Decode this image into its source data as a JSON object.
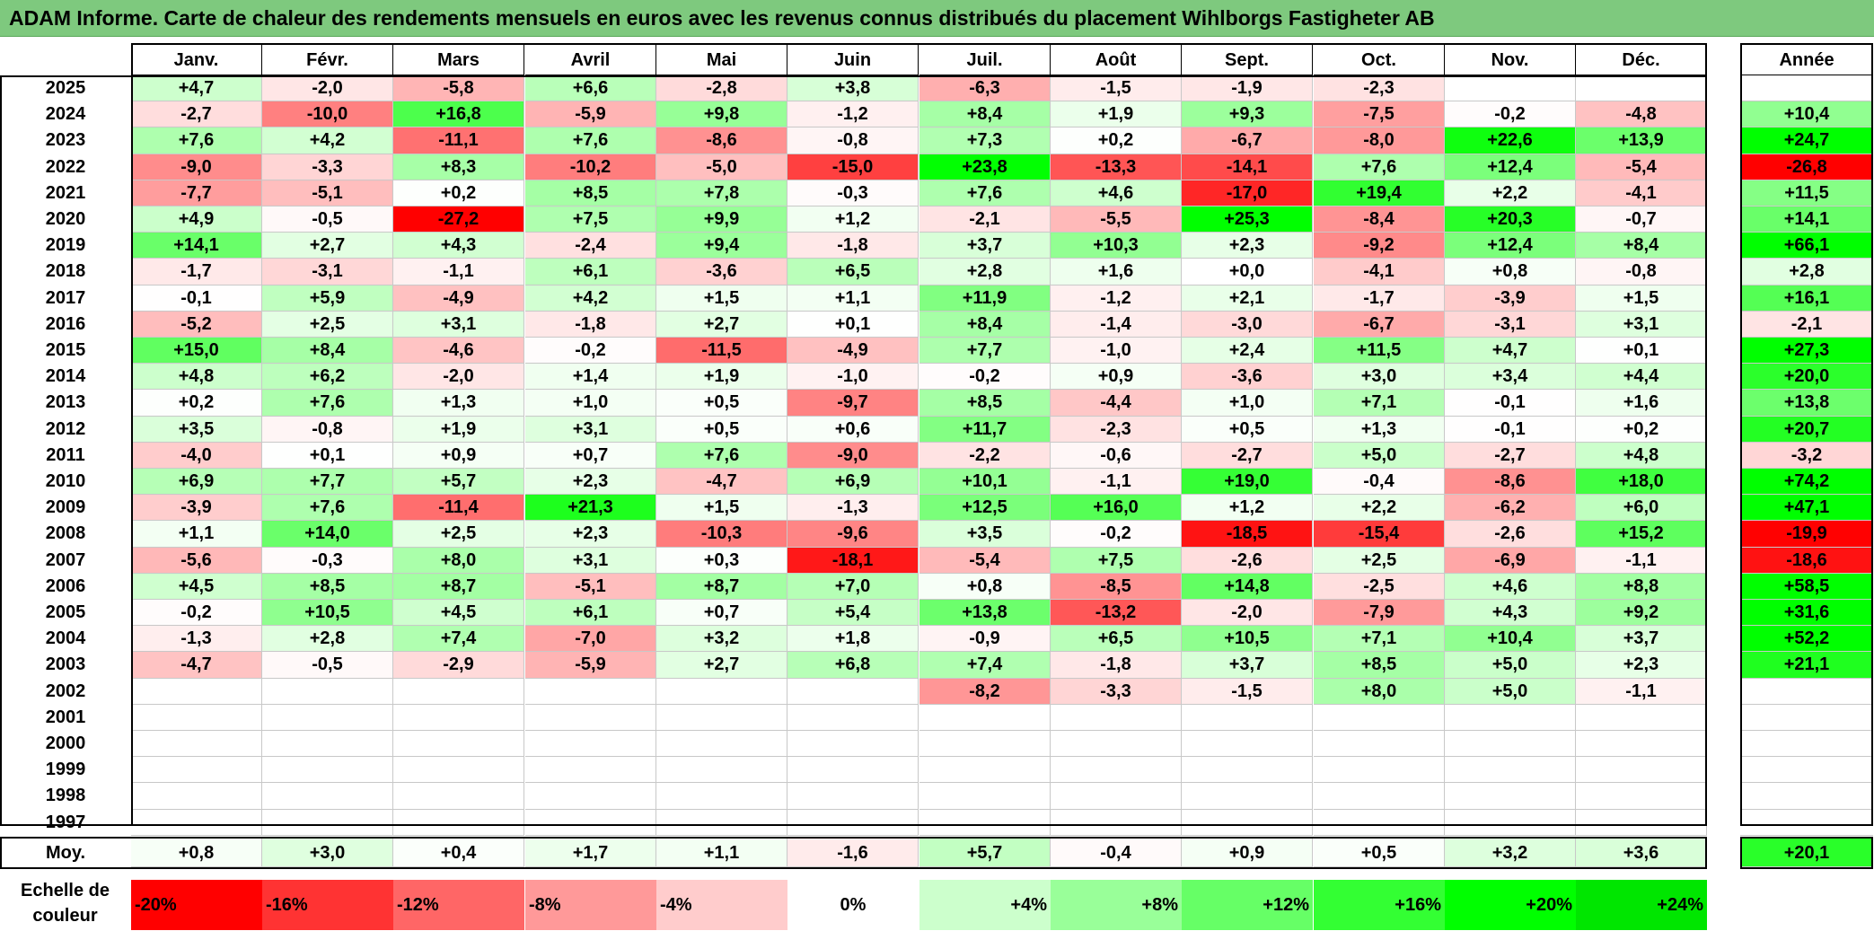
{
  "title": "ADAM Informe. Carte de chaleur des rendements mensuels en euros avec les revenus connus distribués du placement Wihlborgs Fastigheter AB",
  "chart_data": {
    "type": "heatmap",
    "title": "ADAM Informe. Carte de chaleur des rendements mensuels en euros avec les revenus connus distribués du placement Wihlborgs Fastigheter AB",
    "columns": [
      "Janv.",
      "Févr.",
      "Mars",
      "Avril",
      "Mai",
      "Juin",
      "Juil.",
      "Août",
      "Sept.",
      "Oct.",
      "Nov.",
      "Déc."
    ],
    "year_header": "Année",
    "rows": [
      {
        "year": "2025",
        "values": [
          "+4,7",
          "-2,0",
          "-5,8",
          "+6,6",
          "-2,8",
          "+3,8",
          "-6,3",
          "-1,5",
          "-1,9",
          "-2,3",
          "",
          ""
        ],
        "annual": ""
      },
      {
        "year": "2024",
        "values": [
          "-2,7",
          "-10,0",
          "+16,8",
          "-5,9",
          "+9,8",
          "-1,2",
          "+8,4",
          "+1,9",
          "+9,3",
          "-7,5",
          "-0,2",
          "-4,8"
        ],
        "annual": "+10,4"
      },
      {
        "year": "2023",
        "values": [
          "+7,6",
          "+4,2",
          "-11,1",
          "+7,6",
          "-8,6",
          "-0,8",
          "+7,3",
          "+0,2",
          "-6,7",
          "-8,0",
          "+22,6",
          "+13,9"
        ],
        "annual": "+24,7"
      },
      {
        "year": "2022",
        "values": [
          "-9,0",
          "-3,3",
          "+8,3",
          "-10,2",
          "-5,0",
          "-15,0",
          "+23,8",
          "-13,3",
          "-14,1",
          "+7,6",
          "+12,4",
          "-5,4"
        ],
        "annual": "-26,8"
      },
      {
        "year": "2021",
        "values": [
          "-7,7",
          "-5,1",
          "+0,2",
          "+8,5",
          "+7,8",
          "-0,3",
          "+7,6",
          "+4,6",
          "-17,0",
          "+19,4",
          "+2,2",
          "-4,1"
        ],
        "annual": "+11,5"
      },
      {
        "year": "2020",
        "values": [
          "+4,9",
          "-0,5",
          "-27,2",
          "+7,5",
          "+9,9",
          "+1,2",
          "-2,1",
          "-5,5",
          "+25,3",
          "-8,4",
          "+20,3",
          "-0,7"
        ],
        "annual": "+14,1"
      },
      {
        "year": "2019",
        "values": [
          "+14,1",
          "+2,7",
          "+4,3",
          "-2,4",
          "+9,4",
          "-1,8",
          "+3,7",
          "+10,3",
          "+2,3",
          "-9,2",
          "+12,4",
          "+8,4"
        ],
        "annual": "+66,1"
      },
      {
        "year": "2018",
        "values": [
          "-1,7",
          "-3,1",
          "-1,1",
          "+6,1",
          "-3,6",
          "+6,5",
          "+2,8",
          "+1,6",
          "+0,0",
          "-4,1",
          "+0,8",
          "-0,8"
        ],
        "annual": "+2,8"
      },
      {
        "year": "2017",
        "values": [
          "-0,1",
          "+5,9",
          "-4,9",
          "+4,2",
          "+1,5",
          "+1,1",
          "+11,9",
          "-1,2",
          "+2,1",
          "-1,7",
          "-3,9",
          "+1,5"
        ],
        "annual": "+16,1"
      },
      {
        "year": "2016",
        "values": [
          "-5,2",
          "+2,5",
          "+3,1",
          "-1,8",
          "+2,7",
          "+0,1",
          "+8,4",
          "-1,4",
          "-3,0",
          "-6,7",
          "-3,1",
          "+3,1"
        ],
        "annual": "-2,1"
      },
      {
        "year": "2015",
        "values": [
          "+15,0",
          "+8,4",
          "-4,6",
          "-0,2",
          "-11,5",
          "-4,9",
          "+7,7",
          "-1,0",
          "+2,4",
          "+11,5",
          "+4,7",
          "+0,1"
        ],
        "annual": "+27,3"
      },
      {
        "year": "2014",
        "values": [
          "+4,8",
          "+6,2",
          "-2,0",
          "+1,4",
          "+1,9",
          "-1,0",
          "-0,2",
          "+0,9",
          "-3,6",
          "+3,0",
          "+3,4",
          "+4,4"
        ],
        "annual": "+20,0"
      },
      {
        "year": "2013",
        "values": [
          "+0,2",
          "+7,6",
          "+1,3",
          "+1,0",
          "+0,5",
          "-9,7",
          "+8,5",
          "-4,4",
          "+1,0",
          "+7,1",
          "-0,1",
          "+1,6"
        ],
        "annual": "+13,8"
      },
      {
        "year": "2012",
        "values": [
          "+3,5",
          "-0,8",
          "+1,9",
          "+3,1",
          "+0,5",
          "+0,6",
          "+11,7",
          "-2,3",
          "+0,5",
          "+1,3",
          "-0,1",
          "+0,2"
        ],
        "annual": "+20,7"
      },
      {
        "year": "2011",
        "values": [
          "-4,0",
          "+0,1",
          "+0,9",
          "+0,7",
          "+7,6",
          "-9,0",
          "-2,2",
          "-0,6",
          "-2,7",
          "+5,0",
          "-2,7",
          "+4,8"
        ],
        "annual": "-3,2"
      },
      {
        "year": "2010",
        "values": [
          "+6,9",
          "+7,7",
          "+5,7",
          "+2,3",
          "-4,7",
          "+6,9",
          "+10,1",
          "-1,1",
          "+19,0",
          "-0,4",
          "-8,6",
          "+18,0"
        ],
        "annual": "+74,2"
      },
      {
        "year": "2009",
        "values": [
          "-3,9",
          "+7,6",
          "-11,4",
          "+21,3",
          "+1,5",
          "-1,3",
          "+12,5",
          "+16,0",
          "+1,2",
          "+2,2",
          "-6,2",
          "+6,0"
        ],
        "annual": "+47,1"
      },
      {
        "year": "2008",
        "values": [
          "+1,1",
          "+14,0",
          "+2,5",
          "+2,3",
          "-10,3",
          "-9,6",
          "+3,5",
          "-0,2",
          "-18,5",
          "-15,4",
          "-2,6",
          "+15,2"
        ],
        "annual": "-19,9"
      },
      {
        "year": "2007",
        "values": [
          "-5,6",
          "-0,3",
          "+8,0",
          "+3,1",
          "+0,3",
          "-18,1",
          "-5,4",
          "+7,5",
          "-2,6",
          "+2,5",
          "-6,9",
          "-1,1"
        ],
        "annual": "-18,6"
      },
      {
        "year": "2006",
        "values": [
          "+4,5",
          "+8,5",
          "+8,7",
          "-5,1",
          "+8,7",
          "+7,0",
          "+0,8",
          "-8,5",
          "+14,8",
          "-2,5",
          "+4,6",
          "+8,8"
        ],
        "annual": "+58,5"
      },
      {
        "year": "2005",
        "values": [
          "-0,2",
          "+10,5",
          "+4,5",
          "+6,1",
          "+0,7",
          "+5,4",
          "+13,8",
          "-13,2",
          "-2,0",
          "-7,9",
          "+4,3",
          "+9,2"
        ],
        "annual": "+31,6"
      },
      {
        "year": "2004",
        "values": [
          "-1,3",
          "+2,8",
          "+7,4",
          "-7,0",
          "+3,2",
          "+1,8",
          "-0,9",
          "+6,5",
          "+10,5",
          "+7,1",
          "+10,4",
          "+3,7"
        ],
        "annual": "+52,2"
      },
      {
        "year": "2003",
        "values": [
          "-4,7",
          "-0,5",
          "-2,9",
          "-5,9",
          "+2,7",
          "+6,8",
          "+7,4",
          "-1,8",
          "+3,7",
          "+8,5",
          "+5,0",
          "+2,3"
        ],
        "annual": "+21,1"
      },
      {
        "year": "2002",
        "values": [
          "",
          "",
          "",
          "",
          "",
          "",
          "-8,2",
          "-3,3",
          "-1,5",
          "+8,0",
          "+5,0",
          "-1,1"
        ],
        "annual": ""
      },
      {
        "year": "2001",
        "values": [
          "",
          "",
          "",
          "",
          "",
          "",
          "",
          "",
          "",
          "",
          "",
          ""
        ],
        "annual": ""
      },
      {
        "year": "2000",
        "values": [
          "",
          "",
          "",
          "",
          "",
          "",
          "",
          "",
          "",
          "",
          "",
          ""
        ],
        "annual": ""
      },
      {
        "year": "1999",
        "values": [
          "",
          "",
          "",
          "",
          "",
          "",
          "",
          "",
          "",
          "",
          "",
          ""
        ],
        "annual": ""
      },
      {
        "year": "1998",
        "values": [
          "",
          "",
          "",
          "",
          "",
          "",
          "",
          "",
          "",
          "",
          "",
          ""
        ],
        "annual": ""
      },
      {
        "year": "1997",
        "values": [
          "",
          "",
          "",
          "",
          "",
          "",
          "",
          "",
          "",
          "",
          "",
          ""
        ],
        "annual": ""
      }
    ],
    "average": {
      "label": "Moy.",
      "values": [
        "+0,8",
        "+3,0",
        "+0,4",
        "+1,7",
        "+1,1",
        "-1,6",
        "+5,7",
        "-0,4",
        "+0,9",
        "+0,5",
        "+3,2",
        "+3,6"
      ],
      "annual": "+20,1"
    },
    "color_scale": {
      "label": "Echelle de couleur",
      "steps": [
        {
          "label": "-20%",
          "value": -20,
          "color": "#ff0000"
        },
        {
          "label": "-16%",
          "value": -16,
          "color": "#ff3333"
        },
        {
          "label": "-12%",
          "value": -12,
          "color": "#ff6666"
        },
        {
          "label": "-8%",
          "value": -8,
          "color": "#ff9999"
        },
        {
          "label": "-4%",
          "value": -4,
          "color": "#ffcccc"
        },
        {
          "label": "0%",
          "value": 0,
          "color": "#ffffff"
        },
        {
          "label": "+4%",
          "value": 4,
          "color": "#ccffcc"
        },
        {
          "label": "+8%",
          "value": 8,
          "color": "#99ff99"
        },
        {
          "label": "+12%",
          "value": 12,
          "color": "#66ff66"
        },
        {
          "label": "+16%",
          "value": 16,
          "color": "#33ff33"
        },
        {
          "label": "+20%",
          "value": 20,
          "color": "#00ff00"
        },
        {
          "label": "+24%",
          "value": 24,
          "color": "#00e600"
        }
      ]
    }
  }
}
